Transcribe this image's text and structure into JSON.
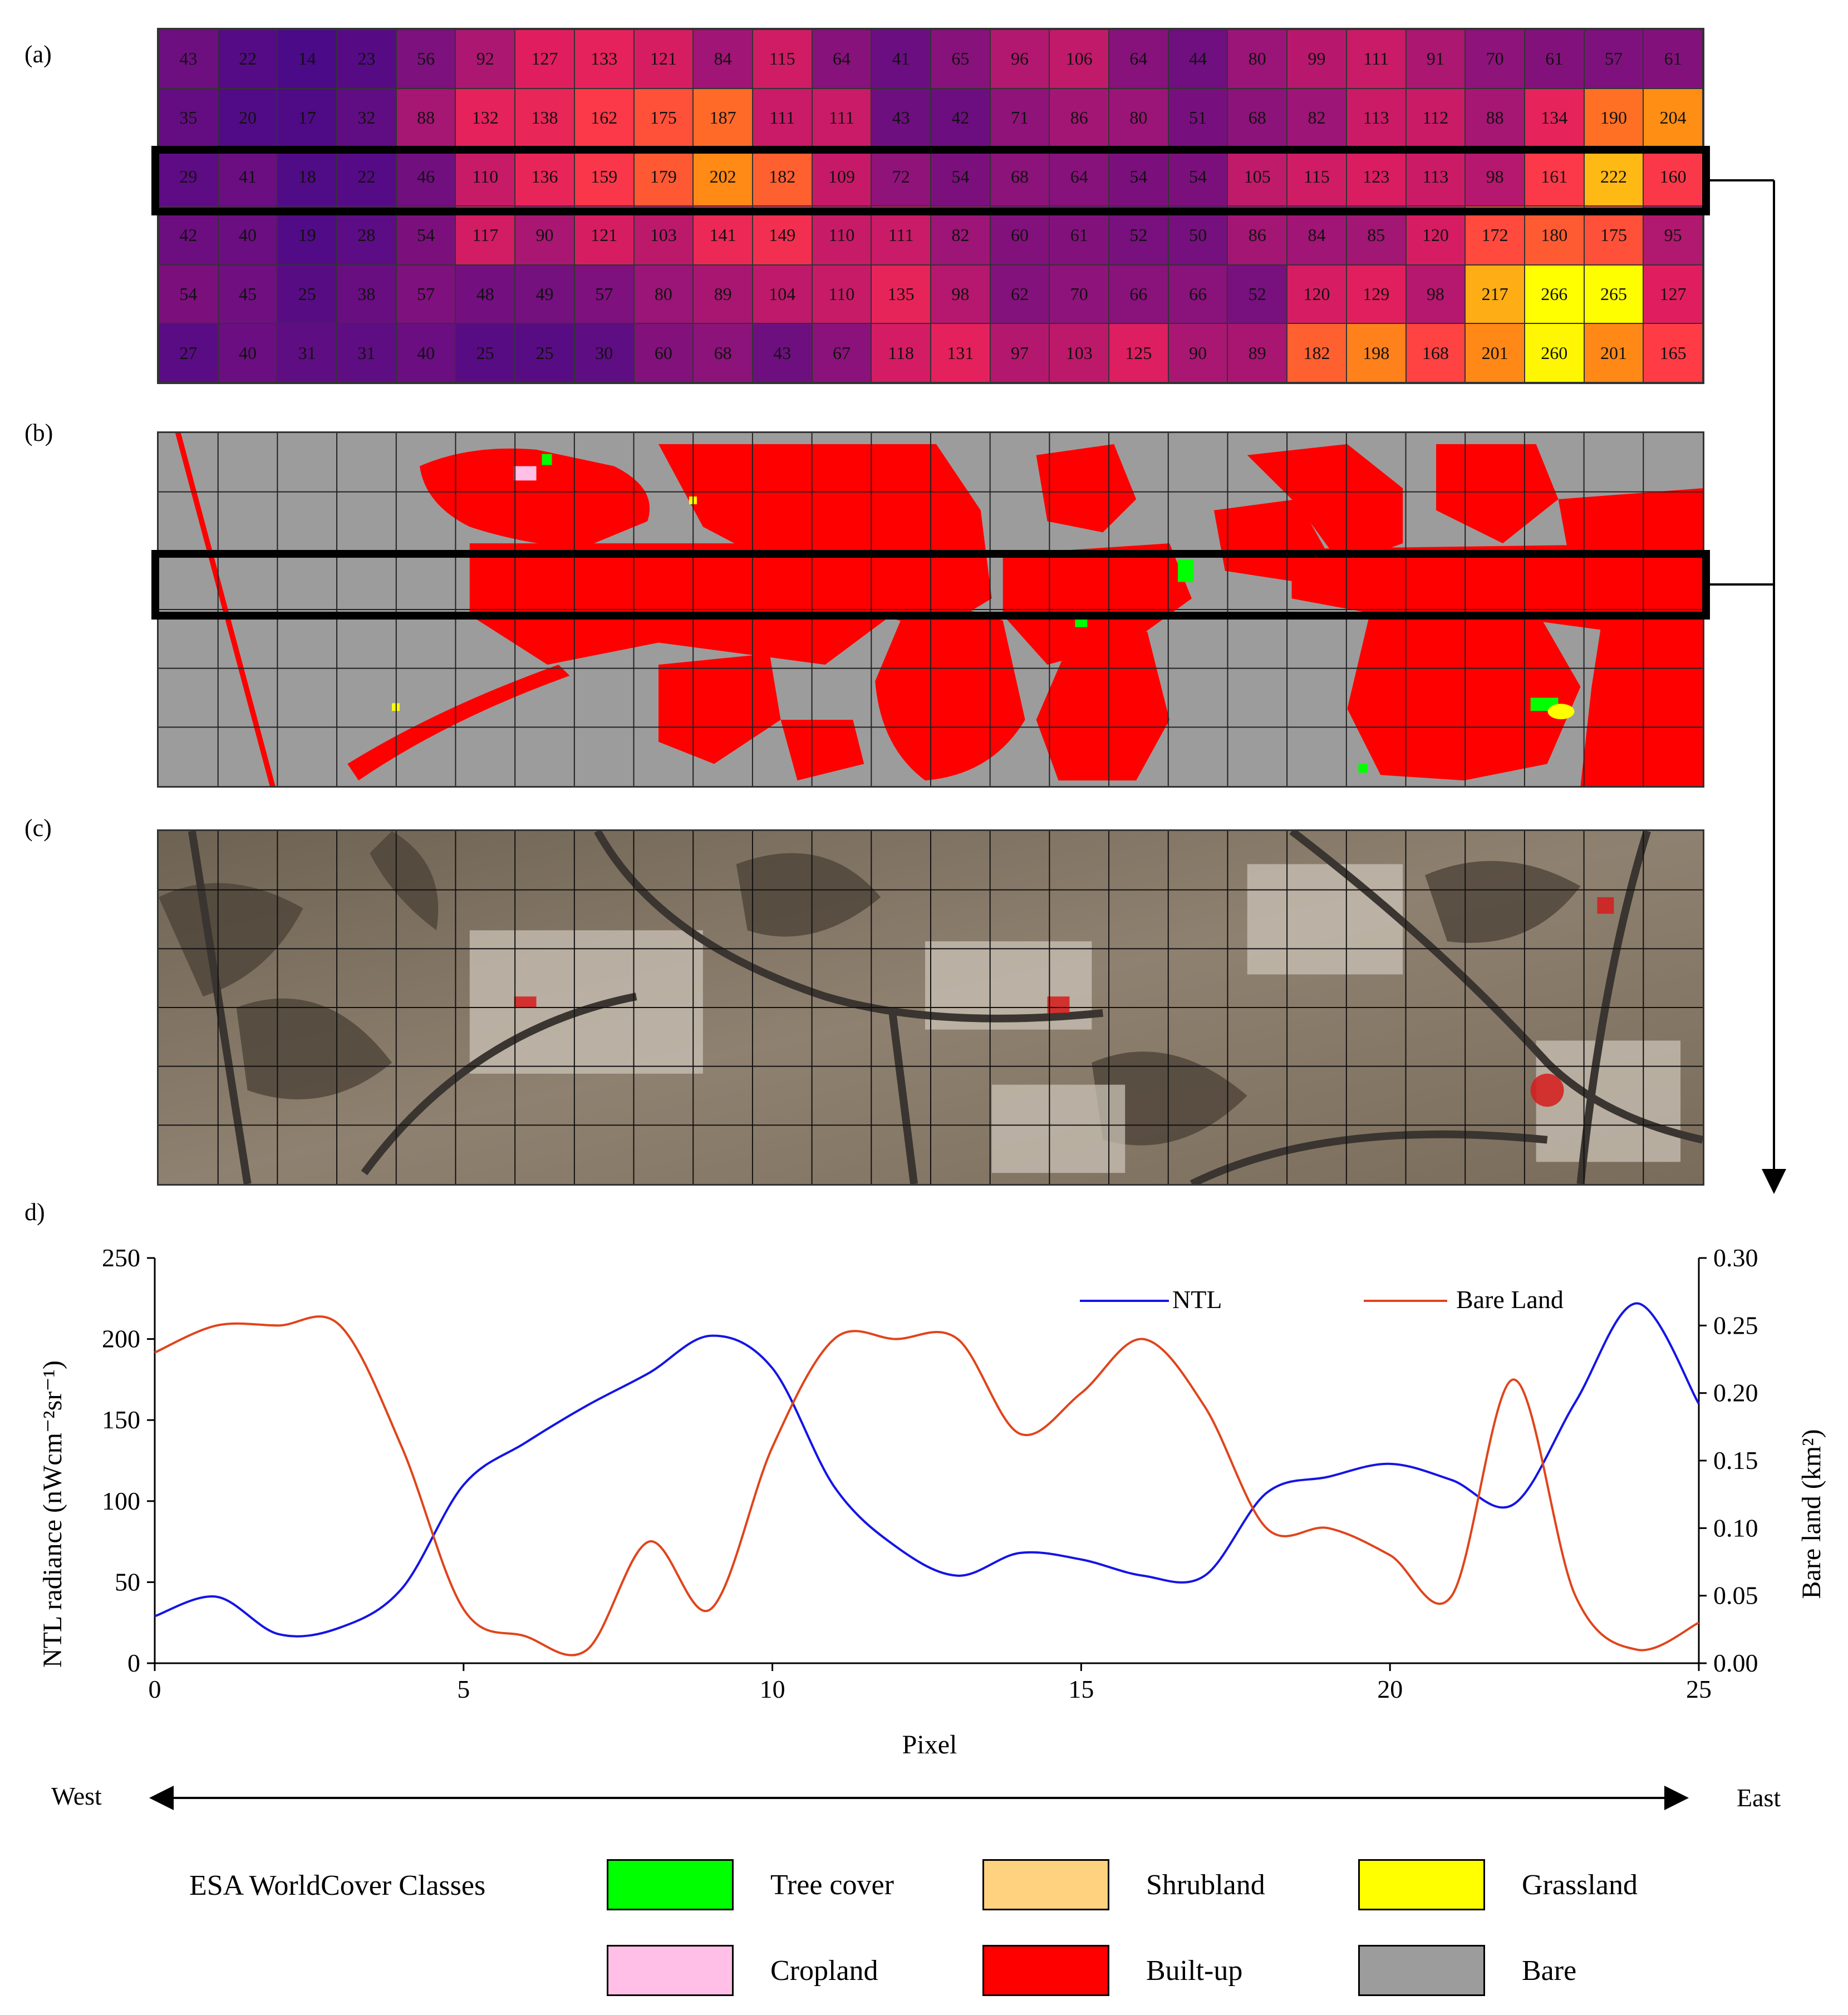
{
  "labels": {
    "a": "(a)",
    "b": "(b)",
    "c": "(c)",
    "d": "d)"
  },
  "grid_values": [
    [
      43,
      22,
      14,
      23,
      56,
      92,
      127,
      133,
      121,
      84,
      115,
      64,
      41,
      65,
      96,
      106,
      64,
      44,
      80,
      99,
      111,
      91,
      70,
      61,
      57,
      61
    ],
    [
      35,
      20,
      17,
      32,
      88,
      132,
      138,
      162,
      175,
      187,
      111,
      111,
      43,
      42,
      71,
      86,
      80,
      51,
      68,
      82,
      113,
      112,
      88,
      134,
      190,
      204
    ],
    [
      29,
      41,
      18,
      22,
      46,
      110,
      136,
      159,
      179,
      202,
      182,
      109,
      72,
      54,
      68,
      64,
      54,
      54,
      105,
      115,
      123,
      113,
      98,
      161,
      222,
      160
    ],
    [
      42,
      40,
      19,
      28,
      54,
      117,
      90,
      121,
      103,
      141,
      149,
      110,
      111,
      82,
      60,
      61,
      52,
      50,
      86,
      84,
      85,
      120,
      172,
      180,
      175,
      95
    ],
    [
      54,
      45,
      25,
      38,
      57,
      48,
      49,
      57,
      80,
      89,
      104,
      110,
      135,
      98,
      62,
      70,
      66,
      66,
      52,
      120,
      129,
      98,
      217,
      266,
      265,
      127
    ],
    [
      27,
      40,
      31,
      31,
      40,
      25,
      25,
      30,
      60,
      68,
      43,
      67,
      118,
      131,
      97,
      103,
      125,
      90,
      89,
      182,
      198,
      168,
      201,
      260,
      201,
      165
    ]
  ],
  "highlight_row": 2,
  "chart_data": {
    "type": "line",
    "x": [
      0,
      1,
      2,
      3,
      4,
      5,
      6,
      7,
      8,
      9,
      10,
      11,
      12,
      13,
      14,
      15,
      16,
      17,
      18,
      19,
      20,
      21,
      22,
      23,
      24,
      25
    ],
    "series": [
      {
        "name": "NTL",
        "axis": "left",
        "color": "#1414e6",
        "values": [
          29,
          41,
          18,
          22,
          46,
          110,
          136,
          159,
          179,
          202,
          182,
          109,
          72,
          54,
          68,
          64,
          54,
          54,
          105,
          115,
          123,
          113,
          98,
          161,
          222,
          160
        ]
      },
      {
        "name": "Bare Land",
        "axis": "right",
        "color": "#e0441b",
        "values": [
          0.23,
          0.25,
          0.25,
          0.25,
          0.16,
          0.04,
          0.02,
          0.01,
          0.09,
          0.04,
          0.16,
          0.24,
          0.24,
          0.24,
          0.17,
          0.2,
          0.24,
          0.19,
          0.1,
          0.1,
          0.08,
          0.05,
          0.21,
          0.05,
          0.01,
          0.03
        ]
      }
    ],
    "xlabel": "Pixel",
    "ylabel_left": "NTL radiance (nWcm⁻²sr⁻¹)",
    "ylabel_right": "Bare land (km²)",
    "xlim": [
      0,
      25
    ],
    "ylim_left": [
      0,
      250
    ],
    "ylim_right": [
      0,
      0.3
    ],
    "xticks": [
      "0",
      "5",
      "10",
      "15",
      "20",
      "25"
    ],
    "yticks_left": [
      "0",
      "50",
      "100",
      "150",
      "200",
      "250"
    ],
    "yticks_right": [
      "0.00",
      "0.05",
      "0.10",
      "0.15",
      "0.20",
      "0.25",
      "0.30"
    ],
    "legend_placement": "top-right"
  },
  "direction": {
    "west": "West",
    "east": "East"
  },
  "legend": {
    "title": "ESA WorldCover Classes",
    "items": [
      {
        "label": "Tree cover",
        "color": "#00ff00"
      },
      {
        "label": "Shrubland",
        "color": "#ffd27f"
      },
      {
        "label": "Grassland",
        "color": "#ffff00"
      },
      {
        "label": "Cropland",
        "color": "#ffbfe6"
      },
      {
        "label": "Built-up",
        "color": "#ff0000"
      },
      {
        "label": "Bare",
        "color": "#9c9c9c"
      }
    ]
  }
}
